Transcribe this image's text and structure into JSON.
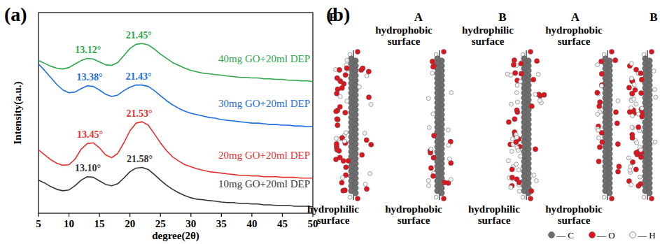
{
  "chart_data": {
    "type": "line",
    "title": "(a)",
    "x_label": "degree(2θ)",
    "y_label": "Intensity(a.u.)",
    "x": [
      5,
      6,
      7,
      8,
      9,
      10,
      11,
      12,
      13,
      14,
      15,
      16,
      17,
      18,
      19,
      20,
      21,
      22,
      23,
      24,
      25,
      26,
      27,
      28,
      29,
      30,
      31,
      32,
      33,
      34,
      35,
      36,
      37,
      38,
      39,
      40,
      41,
      42,
      43,
      44,
      45,
      46,
      47,
      48,
      49,
      50
    ],
    "xlim": [
      5,
      50
    ],
    "xticks": [
      5,
      10,
      15,
      20,
      25,
      30,
      35,
      40,
      45,
      50
    ],
    "ylim": [
      0,
      100
    ],
    "tick_labels": "x",
    "series": [
      {
        "name": "40mg GO+20ml DEP",
        "color": "#2ca84a",
        "peaks": [
          13.12,
          21.45
        ],
        "peak_labels": [
          "13.12°",
          "21.45°"
        ],
        "values": [
          76.1,
          74.7,
          73.3,
          72.3,
          71.9,
          72.6,
          74.4,
          76.1,
          77.2,
          76.8,
          75.4,
          74.0,
          73.7,
          75.1,
          78.6,
          82.1,
          84.2,
          84.6,
          83.9,
          81.8,
          79.3,
          77.2,
          75.1,
          73.7,
          72.3,
          71.2,
          70.5,
          69.8,
          69.5,
          69.1,
          68.8,
          68.4,
          68.1,
          67.7,
          67.7,
          67.4,
          67.4,
          67.0,
          67.0,
          66.7,
          66.7,
          66.3,
          66.3,
          66.0,
          66.0,
          65.6
        ]
      },
      {
        "name": "30mg GO+20ml DEP",
        "color": "#1f6fe0",
        "peaks": [
          13.38,
          21.43
        ],
        "peak_labels": [
          "13.38°",
          "21.43°"
        ],
        "values": [
          74.4,
          71.2,
          67.7,
          64.2,
          61.4,
          60.0,
          60.4,
          62.1,
          63.5,
          63.2,
          61.4,
          59.3,
          58.2,
          58.9,
          61.1,
          62.8,
          63.9,
          63.9,
          63.2,
          61.1,
          58.6,
          56.1,
          54.0,
          52.3,
          50.9,
          49.8,
          49.1,
          48.4,
          47.7,
          47.4,
          46.7,
          46.3,
          46.0,
          45.6,
          45.3,
          44.9,
          44.9,
          44.6,
          44.2,
          44.2,
          43.9,
          43.9,
          43.5,
          43.5,
          43.2,
          43.2
        ]
      },
      {
        "name": "20mg GO+20ml DEP",
        "color": "#e8302f",
        "peaks": [
          13.45,
          21.53
        ],
        "peak_labels": [
          "13.45°",
          "21.53°"
        ],
        "values": [
          31.6,
          29.1,
          26.7,
          24.9,
          23.9,
          24.2,
          27.0,
          31.9,
          34.7,
          35.1,
          32.6,
          29.1,
          27.7,
          29.8,
          35.1,
          41.1,
          44.9,
          45.6,
          43.9,
          39.6,
          35.1,
          31.2,
          28.1,
          26.0,
          24.2,
          23.2,
          22.1,
          21.4,
          20.7,
          20.4,
          20.0,
          19.6,
          19.3,
          18.9,
          18.9,
          18.6,
          18.6,
          18.2,
          18.2,
          18.2,
          17.9,
          17.9,
          17.9,
          17.5,
          17.5,
          17.5
        ]
      },
      {
        "name": "10mg GO+20ml DEP",
        "color": "#333333",
        "peaks": [
          13.1,
          21.58
        ],
        "peak_labels": [
          "13.10°",
          "21.58°"
        ],
        "values": [
          16.5,
          15.1,
          13.3,
          11.9,
          11.2,
          11.6,
          13.7,
          16.5,
          18.2,
          17.9,
          16.1,
          14.4,
          13.7,
          14.7,
          17.5,
          20.7,
          22.5,
          22.8,
          21.8,
          19.3,
          16.5,
          14.0,
          11.9,
          10.2,
          8.8,
          7.7,
          7.0,
          6.7,
          6.3,
          6.0,
          5.6,
          5.3,
          5.3,
          4.9,
          4.9,
          4.6,
          4.6,
          4.2,
          4.2,
          3.9,
          3.9,
          3.9,
          3.5,
          3.5,
          3.5,
          3.2
        ]
      }
    ]
  },
  "diagram": {
    "title": "(b)",
    "layer_labels": [
      "B",
      "A",
      "B",
      "A",
      "B"
    ],
    "top_labels": [
      "hydrophobic surface",
      "hydrophilic surface",
      "hydrophobic surface"
    ],
    "bottom_labels": [
      "hydrophilic surface",
      "hydrophobic surface",
      "hydrophilic surface",
      "hydrophobic surface"
    ],
    "legend": [
      {
        "label": "— C",
        "color": "#6e6e6e"
      },
      {
        "label": "— O",
        "color": "#e0141e"
      },
      {
        "label": "— H",
        "color": "#f4f4f4"
      }
    ]
  }
}
